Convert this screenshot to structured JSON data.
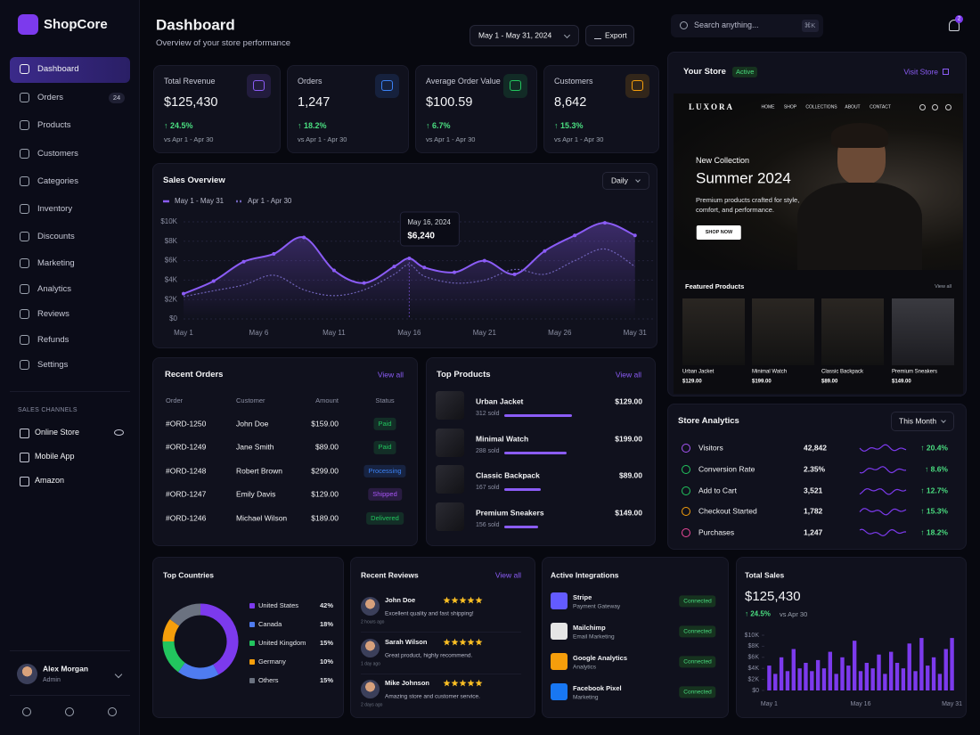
{
  "app": {
    "brand": "ShopCore",
    "nav": [
      "Dashboard",
      "Orders",
      "Products",
      "Customers",
      "Categories",
      "Inventory",
      "Discounts",
      "Marketing",
      "Analytics",
      "Reviews",
      "Refunds",
      "Settings"
    ],
    "nav_badge": "24",
    "channels_title": "SALES CHANNELS",
    "channels": [
      "Online Store",
      "Mobile App",
      "Amazon"
    ],
    "user": {
      "name": "Alex Morgan",
      "role": "Admin"
    }
  },
  "header": {
    "title": "Dashboard",
    "subtitle": "Overview of your store performance",
    "date_range": "May 1 - May 31, 2024",
    "export": "Export",
    "search": "Search anything...",
    "shortcut": "⌘K",
    "notifications": "2"
  },
  "kpis": [
    {
      "label": "Total Revenue",
      "value": "$125,430",
      "change": "↑ 24.5%",
      "compare": "vs Apr 1 - Apr 30",
      "color": "#8b5cf6"
    },
    {
      "label": "Orders",
      "value": "1,247",
      "change": "↑ 18.2%",
      "compare": "vs Apr 1 - Apr 30",
      "color": "#3b82f6"
    },
    {
      "label": "Average Order Value",
      "value": "$100.59",
      "change": "↑ 6.7%",
      "compare": "vs Apr 1 - Apr 30",
      "color": "#22c55e"
    },
    {
      "label": "Customers",
      "value": "8,642",
      "change": "↑ 15.3%",
      "compare": "vs Apr 1 - Apr 30",
      "color": "#f59e0b"
    }
  ],
  "sales_overview": {
    "title": "Sales Overview",
    "period": "Daily",
    "tooltip": {
      "date": "May 16, 2024",
      "value": "$6,240"
    },
    "chart_data": {
      "type": "line",
      "x": [
        1,
        3,
        5,
        7,
        9,
        11,
        13,
        15,
        16,
        17,
        19,
        21,
        23,
        25,
        27,
        29,
        31
      ],
      "series": [
        {
          "name": "May 1 - May 31",
          "color": "#8b5cf6",
          "line_style": "solid",
          "values": [
            2600,
            3900,
            5900,
            6700,
            8400,
            5000,
            3700,
            5400,
            6240,
            5300,
            4800,
            6000,
            4600,
            7000,
            8600,
            9900,
            8600
          ]
        },
        {
          "name": "Apr 1 - Apr 30",
          "color": "#6f63b8",
          "line_style": "dotted",
          "values": [
            2300,
            2900,
            3500,
            4500,
            3000,
            2400,
            3000,
            4600,
            5600,
            4400,
            3700,
            4000,
            5100,
            4600,
            6000,
            7200,
            5400
          ]
        }
      ],
      "xlim": [
        1,
        32.2
      ],
      "xticks": [
        {
          "value": 1,
          "label": "May 1"
        },
        {
          "value": 6,
          "label": "May 6"
        },
        {
          "value": 11,
          "label": "May 11"
        },
        {
          "value": 16,
          "label": "May 16"
        },
        {
          "value": 21,
          "label": "May 21"
        },
        {
          "value": 26,
          "label": "May 26"
        },
        {
          "value": 31,
          "label": "May 31"
        }
      ],
      "ylim": [
        0,
        10000
      ],
      "yticks": [
        {
          "value": 0,
          "label": "$0"
        },
        {
          "value": 2000,
          "label": "$2K"
        },
        {
          "value": 4000,
          "label": "$4K"
        },
        {
          "value": 6000,
          "label": "$6K"
        },
        {
          "value": 8000,
          "label": "$8K"
        },
        {
          "value": 10000,
          "label": "$10K"
        }
      ],
      "grid": true
    }
  },
  "recent_orders": {
    "title": "Recent Orders",
    "view_all": "View all",
    "headers": [
      "Order",
      "Customer",
      "Amount",
      "Status"
    ],
    "rows": [
      {
        "id": "#ORD-1250",
        "customer": "John Doe",
        "amount": "$159.00",
        "status": "Paid",
        "status_color": "#22c55e"
      },
      {
        "id": "#ORD-1249",
        "customer": "Jane Smith",
        "amount": "$89.00",
        "status": "Paid",
        "status_color": "#22c55e"
      },
      {
        "id": "#ORD-1248",
        "customer": "Robert Brown",
        "amount": "$299.00",
        "status": "Processing",
        "status_color": "#3b82f6"
      },
      {
        "id": "#ORD-1247",
        "customer": "Emily Davis",
        "amount": "$129.00",
        "status": "Shipped",
        "status_color": "#a855f7"
      },
      {
        "id": "#ORD-1246",
        "customer": "Michael Wilson",
        "amount": "$189.00",
        "status": "Delivered",
        "status_color": "#22c55e"
      }
    ]
  },
  "top_products": {
    "title": "Top Products",
    "view_all": "View all",
    "items": [
      {
        "name": "Urban Jacket",
        "sold": "312 sold",
        "price": "$129.00"
      },
      {
        "name": "Minimal Watch",
        "sold": "288 sold",
        "price": "$199.00"
      },
      {
        "name": "Classic Backpack",
        "sold": "167 sold",
        "price": "$89.00"
      },
      {
        "name": "Premium Sneakers",
        "sold": "156 sold",
        "price": "$149.00"
      }
    ]
  },
  "store": {
    "title": "Your Store",
    "status": "Active",
    "link": "Visit Store",
    "logo": "LUXORA",
    "menu": [
      "HOME",
      "SHOP",
      "COLLECTIONS",
      "ABOUT",
      "CONTACT"
    ],
    "eyebrow": "New Collection",
    "headline": "Summer 2024",
    "text": "Premium products crafted for style, comfort, and performance.",
    "cta": "SHOP NOW",
    "featured_title": "Featured Products",
    "view_all": "View all",
    "products": [
      {
        "name": "Urban Jacket",
        "price": "$129.00"
      },
      {
        "name": "Minimal Watch",
        "price": "$199.00"
      },
      {
        "name": "Classic Backpack",
        "price": "$89.00"
      },
      {
        "name": "Premium Sneakers",
        "price": "$149.00"
      }
    ]
  },
  "store_analytics": {
    "title": "Store Analytics",
    "period": "This Month",
    "rows": [
      {
        "name": "Visitors",
        "value": "42,842",
        "change": "↑ 20.4%",
        "icon_color": "#a855f7"
      },
      {
        "name": "Conversion Rate",
        "value": "2.35%",
        "change": "↑ 8.6%",
        "icon_color": "#22c55e"
      },
      {
        "name": "Add to Cart",
        "value": "3,521",
        "change": "↑ 12.7%",
        "icon_color": "#22c55e"
      },
      {
        "name": "Checkout Started",
        "value": "1,782",
        "change": "↑ 15.3%",
        "icon_color": "#f59e0b"
      },
      {
        "name": "Purchases",
        "value": "1,247",
        "change": "↑ 18.2%",
        "icon_color": "#ec4899"
      }
    ]
  },
  "top_countries": {
    "title": "Top Countries",
    "chart_data": {
      "type": "pie",
      "categories": [
        "United States",
        "Canada",
        "United Kingdom",
        "Germany",
        "Others"
      ],
      "values": [
        42,
        18,
        15,
        10,
        15
      ],
      "value_labels": [
        "42%",
        "18%",
        "15%",
        "10%",
        "15%"
      ],
      "colors": [
        "#7c3aed",
        "#4f7cf0",
        "#22c55e",
        "#f59e0b",
        "#6b7280"
      ]
    }
  },
  "recent_reviews": {
    "title": "Recent Reviews",
    "view_all": "View all",
    "items": [
      {
        "name": "John Doe",
        "text": "Excellent quality and fast shipping!",
        "time": "2 hours ago"
      },
      {
        "name": "Sarah Wilson",
        "text": "Great product, highly recommend.",
        "time": "1 day ago"
      },
      {
        "name": "Mike Johnson",
        "text": "Amazing store and customer service.",
        "time": "2 days ago"
      }
    ]
  },
  "integrations": {
    "title": "Active Integrations",
    "items": [
      {
        "name": "Stripe",
        "desc": "Payment Gateway",
        "status": "Connected",
        "color": "#635bff"
      },
      {
        "name": "Mailchimp",
        "desc": "Email Marketing",
        "status": "Connected",
        "color": "#e5e5e5"
      },
      {
        "name": "Google Analytics",
        "desc": "Analytics",
        "status": "Connected",
        "color": "#f59e0b"
      },
      {
        "name": "Facebook Pixel",
        "desc": "Marketing",
        "status": "Connected",
        "color": "#1877f2"
      }
    ]
  },
  "total_sales": {
    "title": "Total Sales",
    "value": "$125,430",
    "change": "↑ 24.5%",
    "compare": "vs Apr 30",
    "chart_data": {
      "type": "bar",
      "color": "#7c3aed",
      "categories": [
        "May 1",
        null,
        null,
        null,
        null,
        null,
        null,
        null,
        null,
        null,
        null,
        null,
        null,
        null,
        null,
        "May 16",
        null,
        null,
        null,
        null,
        null,
        null,
        null,
        null,
        null,
        null,
        null,
        null,
        null,
        null,
        "May 31"
      ],
      "values": [
        4500,
        3000,
        6000,
        3500,
        7500,
        4000,
        5000,
        3500,
        5500,
        4000,
        7000,
        3000,
        6000,
        4500,
        9000,
        3500,
        5000,
        4000,
        6500,
        3000,
        7000,
        5000,
        4000,
        8500,
        3500,
        9500,
        4500,
        6000,
        3000,
        7500,
        9500
      ],
      "ylim": [
        0,
        10000
      ],
      "yticks": [
        {
          "value": 0,
          "label": "$0"
        },
        {
          "value": 2000,
          "label": "$2K"
        },
        {
          "value": 4000,
          "label": "$4K"
        },
        {
          "value": 6000,
          "label": "$6K"
        },
        {
          "value": 8000,
          "label": "$8K"
        },
        {
          "value": 10000,
          "label": "$10K"
        }
      ]
    }
  }
}
